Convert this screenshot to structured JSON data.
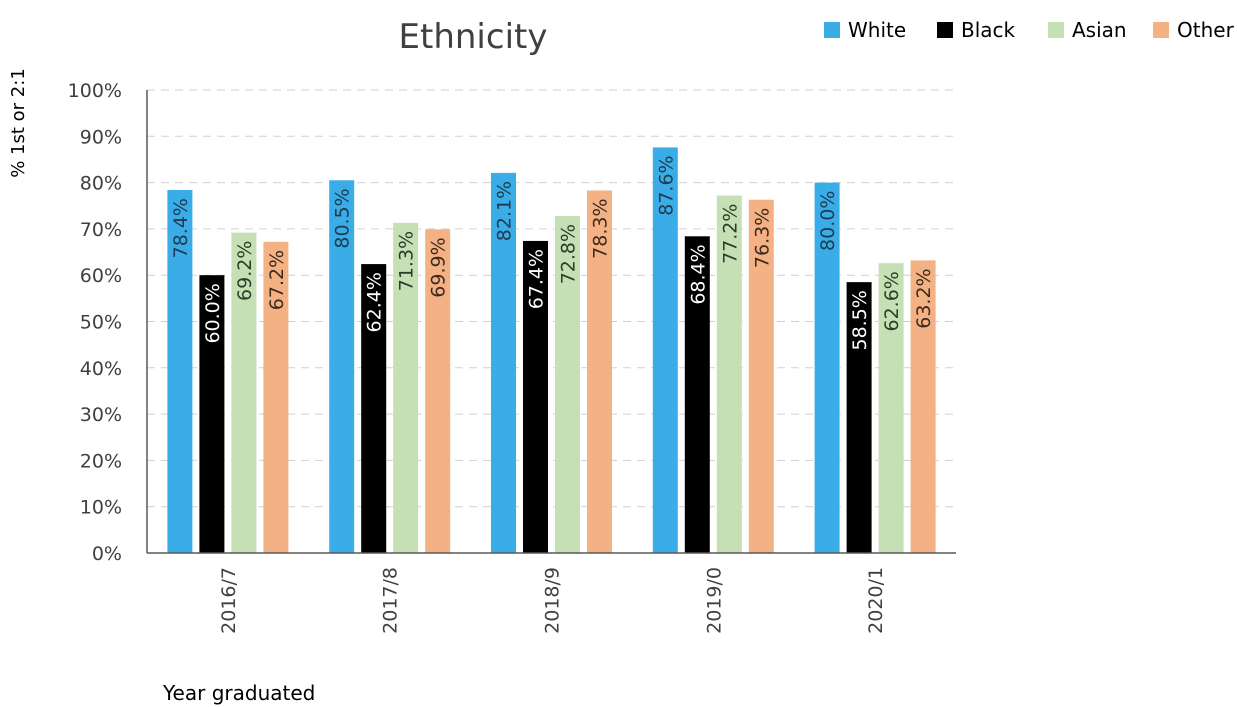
{
  "chart_data": {
    "type": "bar",
    "title": "Ethnicity",
    "xlabel": "Year graduated",
    "ylabel": "% 1st or 2:1",
    "ylim": [
      0,
      100
    ],
    "yticks": [
      "0%",
      "10%",
      "20%",
      "30%",
      "40%",
      "50%",
      "60%",
      "70%",
      "80%",
      "90%",
      "100%"
    ],
    "categories": [
      "2016/7",
      "2017/8",
      "2018/9",
      "2019/0",
      "2020/1"
    ],
    "grid": true,
    "legend_position": "top-right",
    "series": [
      {
        "name": "White",
        "color": "#3AADE9",
        "label_color": "#1f3b4d",
        "values": [
          78.4,
          80.5,
          82.1,
          87.6,
          80.0
        ],
        "labels": [
          "78.4%",
          "80.5%",
          "82.1%",
          "87.6%",
          "80.0%"
        ]
      },
      {
        "name": "Black",
        "color": "#000000",
        "label_color": "#ffffff",
        "values": [
          60.0,
          62.4,
          67.4,
          68.4,
          58.5
        ],
        "labels": [
          "60.0%",
          "62.4%",
          "67.4%",
          "68.4%",
          "58.5%"
        ]
      },
      {
        "name": "Asian",
        "color": "#C5E0B4",
        "label_color": "#2f3b2a",
        "values": [
          69.2,
          71.3,
          72.8,
          77.2,
          62.6
        ],
        "labels": [
          "69.2%",
          "71.3%",
          "72.8%",
          "77.2%",
          "62.6%"
        ]
      },
      {
        "name": "Other",
        "color": "#F4B183",
        "label_color": "#3b2a1f",
        "values": [
          67.2,
          69.9,
          78.3,
          76.3,
          63.2
        ],
        "labels": [
          "67.2%",
          "69.9%",
          "78.3%",
          "76.3%",
          "63.2%"
        ]
      }
    ]
  }
}
